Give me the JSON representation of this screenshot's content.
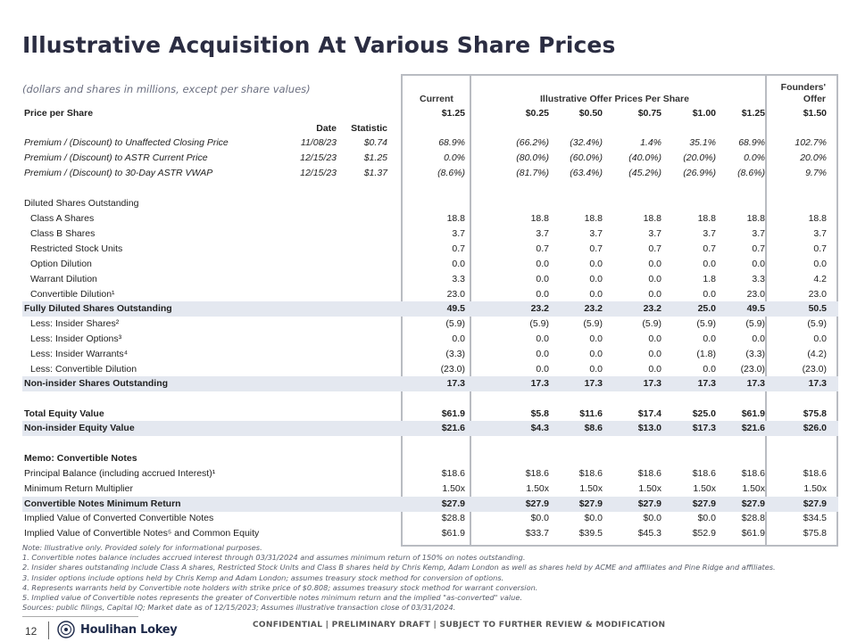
{
  "title": "Illustrative Acquisition At Various Share Prices",
  "subtitle": "(dollars and shares in millions, except per share values)",
  "headers": {
    "current": "Current",
    "illustrative": "Illustrative Offer Prices Per Share",
    "founders_line1": "Founders'",
    "founders_line2": "Offer",
    "date": "Date",
    "statistic": "Statistic"
  },
  "price_row": {
    "label": "Price per Share",
    "values": [
      "$1.25",
      "$0.25",
      "$0.50",
      "$0.75",
      "$1.00",
      "$1.25",
      "$1.50"
    ]
  },
  "premium_rows": [
    {
      "label": "Premium / (Discount) to Unaffected Closing Price",
      "date": "11/08/23",
      "stat": "$0.74",
      "values": [
        "68.9%",
        "(66.2%)",
        "(32.4%)",
        "1.4%",
        "35.1%",
        "68.9%",
        "102.7%"
      ]
    },
    {
      "label": "Premium / (Discount) to ASTR Current Price",
      "date": "12/15/23",
      "stat": "$1.25",
      "values": [
        "0.0%",
        "(80.0%)",
        "(60.0%)",
        "(40.0%)",
        "(20.0%)",
        "0.0%",
        "20.0%"
      ]
    },
    {
      "label": "Premium / (Discount) to 30-Day ASTR VWAP",
      "date": "12/15/23",
      "stat": "$1.37",
      "values": [
        "(8.6%)",
        "(81.7%)",
        "(63.4%)",
        "(45.2%)",
        "(26.9%)",
        "(8.6%)",
        "9.7%"
      ]
    }
  ],
  "diluted_header": "Diluted Shares Outstanding",
  "share_rows": [
    {
      "label": "Class A Shares",
      "values": [
        "18.8",
        "18.8",
        "18.8",
        "18.8",
        "18.8",
        "18.8",
        "18.8"
      ]
    },
    {
      "label": "Class B Shares",
      "values": [
        "3.7",
        "3.7",
        "3.7",
        "3.7",
        "3.7",
        "3.7",
        "3.7"
      ]
    },
    {
      "label": "Restricted Stock Units",
      "values": [
        "0.7",
        "0.7",
        "0.7",
        "0.7",
        "0.7",
        "0.7",
        "0.7"
      ]
    },
    {
      "label": "Option Dilution",
      "values": [
        "0.0",
        "0.0",
        "0.0",
        "0.0",
        "0.0",
        "0.0",
        "0.0"
      ]
    },
    {
      "label": "Warrant Dilution",
      "values": [
        "3.3",
        "0.0",
        "0.0",
        "0.0",
        "1.8",
        "3.3",
        "4.2"
      ]
    },
    {
      "label": "Convertible Dilution¹",
      "values": [
        "23.0",
        "0.0",
        "0.0",
        "0.0",
        "0.0",
        "23.0",
        "23.0"
      ]
    }
  ],
  "fully_diluted": {
    "label": "Fully Diluted Shares Outstanding",
    "values": [
      "49.5",
      "23.2",
      "23.2",
      "23.2",
      "25.0",
      "49.5",
      "50.5"
    ]
  },
  "less_rows": [
    {
      "label": "Less: Insider Shares²",
      "values": [
        "(5.9)",
        "(5.9)",
        "(5.9)",
        "(5.9)",
        "(5.9)",
        "(5.9)",
        "(5.9)"
      ]
    },
    {
      "label": "Less: Insider Options³",
      "values": [
        "0.0",
        "0.0",
        "0.0",
        "0.0",
        "0.0",
        "0.0",
        "0.0"
      ]
    },
    {
      "label": "Less: Insider Warrants⁴",
      "values": [
        "(3.3)",
        "0.0",
        "0.0",
        "0.0",
        "(1.8)",
        "(3.3)",
        "(4.2)"
      ]
    },
    {
      "label": "Less: Convertible Dilution",
      "values": [
        "(23.0)",
        "0.0",
        "0.0",
        "0.0",
        "0.0",
        "(23.0)",
        "(23.0)"
      ]
    }
  ],
  "non_insider_shares": {
    "label": "Non-insider Shares Outstanding",
    "values": [
      "17.3",
      "17.3",
      "17.3",
      "17.3",
      "17.3",
      "17.3",
      "17.3"
    ]
  },
  "total_equity": {
    "label": "Total Equity Value",
    "values": [
      "$61.9",
      "$5.8",
      "$11.6",
      "$17.4",
      "$25.0",
      "$61.9",
      "$75.8"
    ]
  },
  "non_insider_equity": {
    "label": "Non-insider Equity Value",
    "values": [
      "$21.6",
      "$4.3",
      "$8.6",
      "$13.0",
      "$17.3",
      "$21.6",
      "$26.0"
    ]
  },
  "memo_header": "Memo: Convertible Notes",
  "memo_rows": [
    {
      "label": "Principal Balance (including accrued Interest)¹",
      "bold": false,
      "shade": false,
      "values": [
        "$18.6",
        "$18.6",
        "$18.6",
        "$18.6",
        "$18.6",
        "$18.6",
        "$18.6"
      ]
    },
    {
      "label": "Minimum Return Multiplier",
      "bold": false,
      "shade": false,
      "values": [
        "1.50x",
        "1.50x",
        "1.50x",
        "1.50x",
        "1.50x",
        "1.50x",
        "1.50x"
      ]
    },
    {
      "label": "Convertible Notes Minimum Return",
      "bold": true,
      "shade": true,
      "values": [
        "$27.9",
        "$27.9",
        "$27.9",
        "$27.9",
        "$27.9",
        "$27.9",
        "$27.9"
      ]
    },
    {
      "label": "Implied Value of Converted Convertible Notes",
      "bold": false,
      "shade": false,
      "values": [
        "$28.8",
        "$0.0",
        "$0.0",
        "$0.0",
        "$0.0",
        "$28.8",
        "$34.5"
      ]
    },
    {
      "label": "Implied Value of Convertible Notes⁵ and Common Equity",
      "bold": false,
      "shade": false,
      "values": [
        "$61.9",
        "$33.7",
        "$39.5",
        "$45.3",
        "$52.9",
        "$61.9",
        "$75.8"
      ]
    }
  ],
  "notes": [
    "Note: Illustrative only. Provided solely for informational purposes.",
    "1.   Convertible notes balance includes accrued interest through 03/31/2024 and assumes minimum return of 150% on notes outstanding.",
    "2.   Insider shares outstanding include Class A shares, Restricted Stock Units and Class B shares held by Chris Kemp, Adam London as well as shares held by ACME and affiliates and Pine Ridge and affiliates.",
    "3.   Insider options include options held by Chris Kemp and Adam London; assumes treasury stock method for conversion of options.",
    "4.   Represents warrants held by Convertible note holders with strike price of $0.808; assumes treasury stock method for warrant conversion.",
    "5.   Implied value of Convertible notes represents the greater of Convertible notes minimum return and the implied \"as-converted\" value.",
    "Sources: public filings, Capital IQ; Market date as of 12/15/2023; Assumes illustrative transaction close of 03/31/2024."
  ],
  "footer": {
    "page": "12",
    "logo_text": "Houlihan Lokey",
    "confidential": "CONFIDENTIAL | PRELIMINARY DRAFT | SUBJECT TO FURTHER REVIEW & MODIFICATION"
  },
  "colors": {
    "title": "#2b2d42",
    "shade": "#e4e8f0",
    "box_border": "#b9bcc2",
    "logo_navy": "#1e2a4a"
  }
}
